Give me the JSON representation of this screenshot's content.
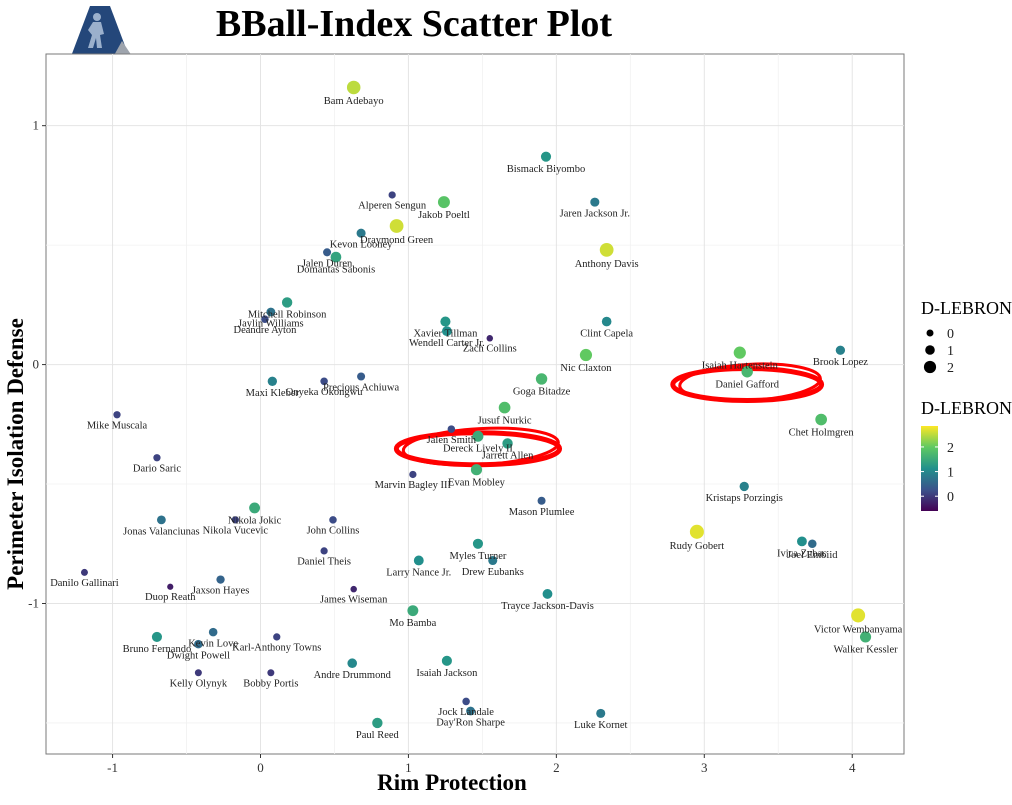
{
  "chart_data": {
    "type": "scatter",
    "title": "BBall-Index Scatter Plot",
    "xlabel": "Rim Protection",
    "ylabel": "Perimeter Isolation Defense",
    "xlim": [
      -1.45,
      4.35
    ],
    "ylim": [
      -1.63,
      1.3
    ],
    "x_ticks": [
      -1,
      0,
      1,
      2,
      3,
      4
    ],
    "y_ticks": [
      1,
      0,
      -1
    ],
    "grid": true,
    "legend_position": "right",
    "size_legend": {
      "title": "D-LEBRON",
      "entries": [
        "0",
        "1",
        "2"
      ]
    },
    "color_legend": {
      "title": "D-LEBRON",
      "ticks": [
        "2",
        "1",
        "0"
      ],
      "range": [
        -0.6,
        2.85
      ]
    },
    "color_scale": [
      "#440154",
      "#3b528b",
      "#21918c",
      "#5ec962",
      "#fde725"
    ],
    "annotation_color": "#ff0000",
    "points": [
      {
        "name": "Bam Adebayo",
        "x": 0.63,
        "y": 1.16,
        "z": 2.5
      },
      {
        "name": "Bismack Biyombo",
        "x": 1.93,
        "y": 0.87,
        "z": 1.2
      },
      {
        "name": "Alperen Sengun",
        "x": 0.89,
        "y": 0.71,
        "z": 0.1
      },
      {
        "name": "Jakob Poeltl",
        "x": 1.24,
        "y": 0.68,
        "z": 1.9
      },
      {
        "name": "Jaren Jackson Jr.",
        "x": 2.26,
        "y": 0.68,
        "z": 0.8
      },
      {
        "name": "Draymond Green",
        "x": 0.92,
        "y": 0.58,
        "z": 2.6
      },
      {
        "name": "Kevon Looney",
        "x": 0.68,
        "y": 0.55,
        "z": 0.8
      },
      {
        "name": "Anthony Davis",
        "x": 2.34,
        "y": 0.48,
        "z": 2.6
      },
      {
        "name": "Jalen Duren",
        "x": 0.45,
        "y": 0.47,
        "z": 0.4
      },
      {
        "name": "Domantas Sabonis",
        "x": 0.51,
        "y": 0.45,
        "z": 1.4
      },
      {
        "name": "Mitchell Robinson",
        "x": 0.18,
        "y": 0.26,
        "z": 1.3
      },
      {
        "name": "Jaylin Williams",
        "x": 0.07,
        "y": 0.22,
        "z": 0.7
      },
      {
        "name": "Deandre Ayton",
        "x": 0.03,
        "y": 0.19,
        "z": 0.2
      },
      {
        "name": "Xavier Tillman",
        "x": 1.25,
        "y": 0.18,
        "z": 1.2
      },
      {
        "name": "Wendell Carter Jr.",
        "x": 1.26,
        "y": 0.14,
        "z": 1.1
      },
      {
        "name": "Clint Capela",
        "x": 2.34,
        "y": 0.18,
        "z": 1.0
      },
      {
        "name": "Zach Collins",
        "x": 1.55,
        "y": 0.11,
        "z": -0.2
      },
      {
        "name": "Nic Claxton",
        "x": 2.2,
        "y": 0.04,
        "z": 2.0
      },
      {
        "name": "Isaiah Hartenstein",
        "x": 3.24,
        "y": 0.05,
        "z": 2.0
      },
      {
        "name": "Brook Lopez",
        "x": 3.92,
        "y": 0.06,
        "z": 0.9
      },
      {
        "name": "Daniel Gafford",
        "x": 3.29,
        "y": -0.03,
        "z": 1.7
      },
      {
        "name": "Maxi Kleber",
        "x": 0.08,
        "y": -0.07,
        "z": 0.9
      },
      {
        "name": "Onyeka Okongwu",
        "x": 0.43,
        "y": -0.07,
        "z": 0.2
      },
      {
        "name": "Precious Achiuwa",
        "x": 0.68,
        "y": -0.05,
        "z": 0.4
      },
      {
        "name": "Goga Bitadze",
        "x": 1.9,
        "y": -0.06,
        "z": 1.7
      },
      {
        "name": "Jusuf Nurkic",
        "x": 1.65,
        "y": -0.18,
        "z": 1.8
      },
      {
        "name": "Chet Holmgren",
        "x": 3.79,
        "y": -0.23,
        "z": 1.8
      },
      {
        "name": "Mike Muscala",
        "x": -0.97,
        "y": -0.21,
        "z": 0.1
      },
      {
        "name": "Jalen Smith",
        "x": 1.29,
        "y": -0.27,
        "z": 0.2
      },
      {
        "name": "Dereck Lively II",
        "x": 1.47,
        "y": -0.3,
        "z": 1.5
      },
      {
        "name": "Jarrett Allen",
        "x": 1.67,
        "y": -0.33,
        "z": 1.3
      },
      {
        "name": "Dario Saric",
        "x": -0.7,
        "y": -0.39,
        "z": 0.1
      },
      {
        "name": "Evan Mobley",
        "x": 1.46,
        "y": -0.44,
        "z": 1.6
      },
      {
        "name": "Marvin Bagley III",
        "x": 1.03,
        "y": -0.46,
        "z": 0.1
      },
      {
        "name": "Kristaps Porzingis",
        "x": 3.27,
        "y": -0.51,
        "z": 0.9
      },
      {
        "name": "Mason Plumlee",
        "x": 1.9,
        "y": -0.57,
        "z": 0.4
      },
      {
        "name": "Nikola Jokic",
        "x": -0.04,
        "y": -0.6,
        "z": 1.5
      },
      {
        "name": "Nikola Vucevic",
        "x": -0.17,
        "y": -0.65,
        "z": 0.1
      },
      {
        "name": "Jonas Valanciunas",
        "x": -0.67,
        "y": -0.65,
        "z": 0.7
      },
      {
        "name": "John Collins",
        "x": 0.49,
        "y": -0.65,
        "z": 0.2
      },
      {
        "name": "Rudy Gobert",
        "x": 2.95,
        "y": -0.7,
        "z": 2.7
      },
      {
        "name": "Myles Turner",
        "x": 1.47,
        "y": -0.75,
        "z": 1.2
      },
      {
        "name": "Ivica Zubac",
        "x": 3.66,
        "y": -0.74,
        "z": 1.1
      },
      {
        "name": "Joel Embiid",
        "x": 3.73,
        "y": -0.75,
        "z": 0.6
      },
      {
        "name": "Daniel Theis",
        "x": 0.43,
        "y": -0.78,
        "z": 0.1
      },
      {
        "name": "Larry Nance Jr.",
        "x": 1.07,
        "y": -0.82,
        "z": 1.1
      },
      {
        "name": "Drew Eubanks",
        "x": 1.57,
        "y": -0.82,
        "z": 0.8
      },
      {
        "name": "Danilo Gallinari",
        "x": -1.19,
        "y": -0.87,
        "z": 0.0
      },
      {
        "name": "Jaxson Hayes",
        "x": -0.27,
        "y": -0.9,
        "z": 0.5
      },
      {
        "name": "Duop Reath",
        "x": -0.61,
        "y": -0.93,
        "z": -0.3
      },
      {
        "name": "James Wiseman",
        "x": 0.63,
        "y": -0.94,
        "z": -0.2
      },
      {
        "name": "Trayce Jackson-Davis",
        "x": 1.94,
        "y": -0.96,
        "z": 1.1
      },
      {
        "name": "Victor Wembanyama",
        "x": 4.04,
        "y": -1.05,
        "z": 2.7
      },
      {
        "name": "Mo Bamba",
        "x": 1.03,
        "y": -1.03,
        "z": 1.5
      },
      {
        "name": "Kevin Love",
        "x": -0.32,
        "y": -1.12,
        "z": 0.6
      },
      {
        "name": "Bruno Fernando",
        "x": -0.7,
        "y": -1.14,
        "z": 1.2
      },
      {
        "name": "Karl-Anthony Towns",
        "x": 0.11,
        "y": -1.14,
        "z": 0.1
      },
      {
        "name": "Walker Kessler",
        "x": 4.09,
        "y": -1.14,
        "z": 1.6
      },
      {
        "name": "Dwight Powell",
        "x": -0.42,
        "y": -1.17,
        "z": 0.6
      },
      {
        "name": "Andre Drummond",
        "x": 0.62,
        "y": -1.25,
        "z": 1.0
      },
      {
        "name": "Isaiah Jackson",
        "x": 1.26,
        "y": -1.24,
        "z": 1.2
      },
      {
        "name": "Kelly Olynyk",
        "x": -0.42,
        "y": -1.29,
        "z": 0.0
      },
      {
        "name": "Bobby Portis",
        "x": 0.07,
        "y": -1.29,
        "z": 0.0
      },
      {
        "name": "Jock Landale",
        "x": 1.39,
        "y": -1.41,
        "z": 0.2
      },
      {
        "name": "Luke Kornet",
        "x": 2.3,
        "y": -1.46,
        "z": 0.8
      },
      {
        "name": "Day'Ron Sharpe",
        "x": 1.42,
        "y": -1.45,
        "z": 0.7
      },
      {
        "name": "Paul Reed",
        "x": 0.79,
        "y": -1.5,
        "z": 1.3
      }
    ],
    "highlighted": [
      "Dereck Lively II",
      "Daniel Gafford"
    ]
  }
}
